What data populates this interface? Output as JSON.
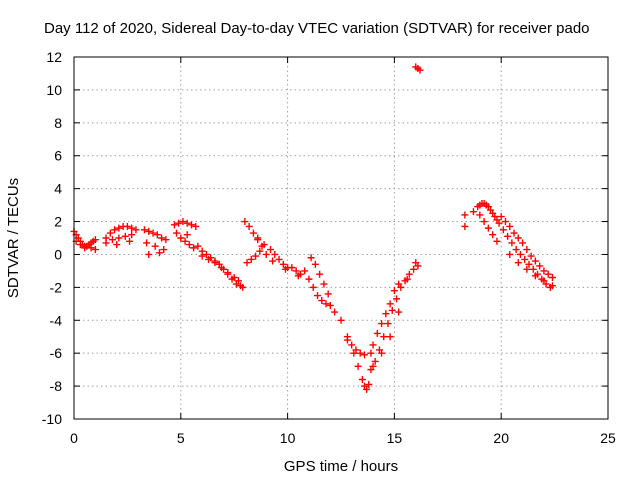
{
  "chart_data": {
    "type": "scatter",
    "title": "Day 112 of 2020, Sidereal Day-to-day VTEC variation (SDTVAR) for receiver pado",
    "xlabel": "GPS time / hours",
    "ylabel": "SDTVAR / TECUs",
    "xlim": [
      0,
      25
    ],
    "ylim": [
      -10,
      12
    ],
    "xticks": [
      "0",
      "5",
      "10",
      "15",
      "20",
      "25"
    ],
    "yticks": [
      "-10",
      "-8",
      "-6",
      "-4",
      "-2",
      "0",
      "2",
      "4",
      "6",
      "8",
      "10",
      "12"
    ],
    "grid": true,
    "marker": "+",
    "color": "#ff0000",
    "series": [
      {
        "name": "SDTVAR",
        "x": [
          0.0,
          0.1,
          0.2,
          0.3,
          0.4,
          0.5,
          0.6,
          0.7,
          0.8,
          0.9,
          1.0,
          0.1,
          0.3,
          0.5,
          0.8,
          1.0,
          1.5,
          1.7,
          1.9,
          2.1,
          2.3,
          2.5,
          2.7,
          2.9,
          1.5,
          1.8,
          2.1,
          2.4,
          2.7,
          2.0,
          2.6,
          3.3,
          3.5,
          3.7,
          3.9,
          4.1,
          4.3,
          3.4,
          3.8,
          4.2,
          3.5,
          4.0,
          4.7,
          4.9,
          5.1,
          5.3,
          5.5,
          5.7,
          4.8,
          5.0,
          5.2,
          5.4,
          5.6,
          5.3,
          5.8,
          6.0,
          6.2,
          6.4,
          6.6,
          6.8,
          7.0,
          7.2,
          7.4,
          7.6,
          7.8,
          7.9,
          6.0,
          6.3,
          6.6,
          6.9,
          7.2,
          7.5,
          7.7,
          8.0,
          8.2,
          8.4,
          8.6,
          8.8,
          9.0,
          8.1,
          8.3,
          8.5,
          8.7,
          8.9,
          8.6,
          9.2,
          9.4,
          9.6,
          9.8,
          10.0,
          10.2,
          10.4,
          10.6,
          9.3,
          9.9,
          10.5,
          10.8,
          11.0,
          11.2,
          11.4,
          11.6,
          11.8,
          12.0,
          11.1,
          11.3,
          11.5,
          11.7,
          11.9,
          12.2,
          12.5,
          12.8,
          13.1,
          13.3,
          13.5,
          13.6,
          13.7,
          13.8,
          12.8,
          13.0,
          13.2,
          13.4,
          13.6,
          13.9,
          14.0,
          14.2,
          14.4,
          14.6,
          14.8,
          15.0,
          15.2,
          13.9,
          14.1,
          14.3,
          14.5,
          14.7,
          14.9,
          15.1,
          15.3,
          15.5,
          15.7,
          15.9,
          16.1,
          14.0,
          14.4,
          14.8,
          15.2,
          15.6,
          16.0,
          16.0,
          16.1,
          16.2,
          18.3,
          18.3,
          18.7,
          18.9,
          19.0,
          19.1,
          19.2,
          19.3,
          19.4,
          19.5,
          19.6,
          19.7,
          19.8,
          19.9,
          19.0,
          19.2,
          19.4,
          19.6,
          19.8,
          20.0,
          20.2,
          20.4,
          20.6,
          20.8,
          21.0,
          21.2,
          21.4,
          21.6,
          21.8,
          22.0,
          22.2,
          22.4,
          20.1,
          20.3,
          20.5,
          20.7,
          20.9,
          21.1,
          21.3,
          21.5,
          21.7,
          21.9,
          22.1,
          22.3,
          20.4,
          20.8,
          21.2,
          21.6,
          22.0,
          22.4
        ],
        "y": [
          1.4,
          1.2,
          1.0,
          0.8,
          0.6,
          0.5,
          0.5,
          0.6,
          0.7,
          0.8,
          0.9,
          0.8,
          0.6,
          0.4,
          0.4,
          0.3,
          1.0,
          1.3,
          1.5,
          1.6,
          1.7,
          1.7,
          1.6,
          1.5,
          0.7,
          0.9,
          1.0,
          1.1,
          1.2,
          0.6,
          0.8,
          1.5,
          1.4,
          1.3,
          1.2,
          1.0,
          0.9,
          0.7,
          0.5,
          0.3,
          0.0,
          0.1,
          1.8,
          1.9,
          2.0,
          1.9,
          1.8,
          1.7,
          1.3,
          1.0,
          0.8,
          0.6,
          0.4,
          1.2,
          0.5,
          0.2,
          0.0,
          -0.2,
          -0.4,
          -0.6,
          -0.9,
          -1.2,
          -1.5,
          -1.8,
          -1.9,
          -2.0,
          -0.1,
          -0.3,
          -0.5,
          -0.8,
          -1.1,
          -1.4,
          -1.6,
          2.0,
          1.7,
          1.3,
          0.9,
          0.5,
          0.0,
          -0.5,
          -0.3,
          -0.1,
          0.2,
          0.6,
          1.0,
          0.3,
          0.0,
          -0.3,
          -0.6,
          -0.8,
          -0.8,
          -1.0,
          -1.2,
          -0.4,
          -0.9,
          -1.3,
          -1.0,
          -1.5,
          -2.0,
          -2.5,
          -2.8,
          -3.0,
          -3.1,
          -0.2,
          -0.6,
          -1.2,
          -1.8,
          -2.4,
          -3.5,
          -4.0,
          -5.0,
          -6.0,
          -6.8,
          -7.6,
          -8.0,
          -8.2,
          -7.9,
          -5.2,
          -5.5,
          -5.8,
          -6.0,
          -6.1,
          -6.0,
          -5.5,
          -4.8,
          -4.2,
          -3.6,
          -3.0,
          -2.2,
          -1.8,
          -7.0,
          -6.5,
          -5.8,
          -5.0,
          -4.2,
          -3.4,
          -2.7,
          -2.0,
          -1.6,
          -1.2,
          -0.9,
          -0.7,
          -6.8,
          -6.0,
          -5.0,
          -3.5,
          -1.5,
          -0.5,
          11.4,
          11.3,
          11.2,
          2.4,
          1.7,
          2.6,
          2.9,
          3.0,
          3.1,
          3.1,
          3.0,
          2.9,
          2.7,
          2.5,
          2.3,
          2.1,
          1.9,
          2.4,
          2.0,
          1.6,
          1.2,
          0.8,
          2.3,
          2.0,
          1.7,
          1.3,
          1.0,
          0.7,
          0.3,
          -0.1,
          -0.4,
          -0.7,
          -1.0,
          -1.2,
          -1.4,
          1.5,
          1.1,
          0.7,
          0.3,
          0.0,
          -0.3,
          -0.6,
          -0.9,
          -1.2,
          -1.5,
          -1.8,
          -2.0,
          0.0,
          -0.5,
          -0.9,
          -1.3,
          -1.6,
          -1.9
        ]
      }
    ]
  }
}
